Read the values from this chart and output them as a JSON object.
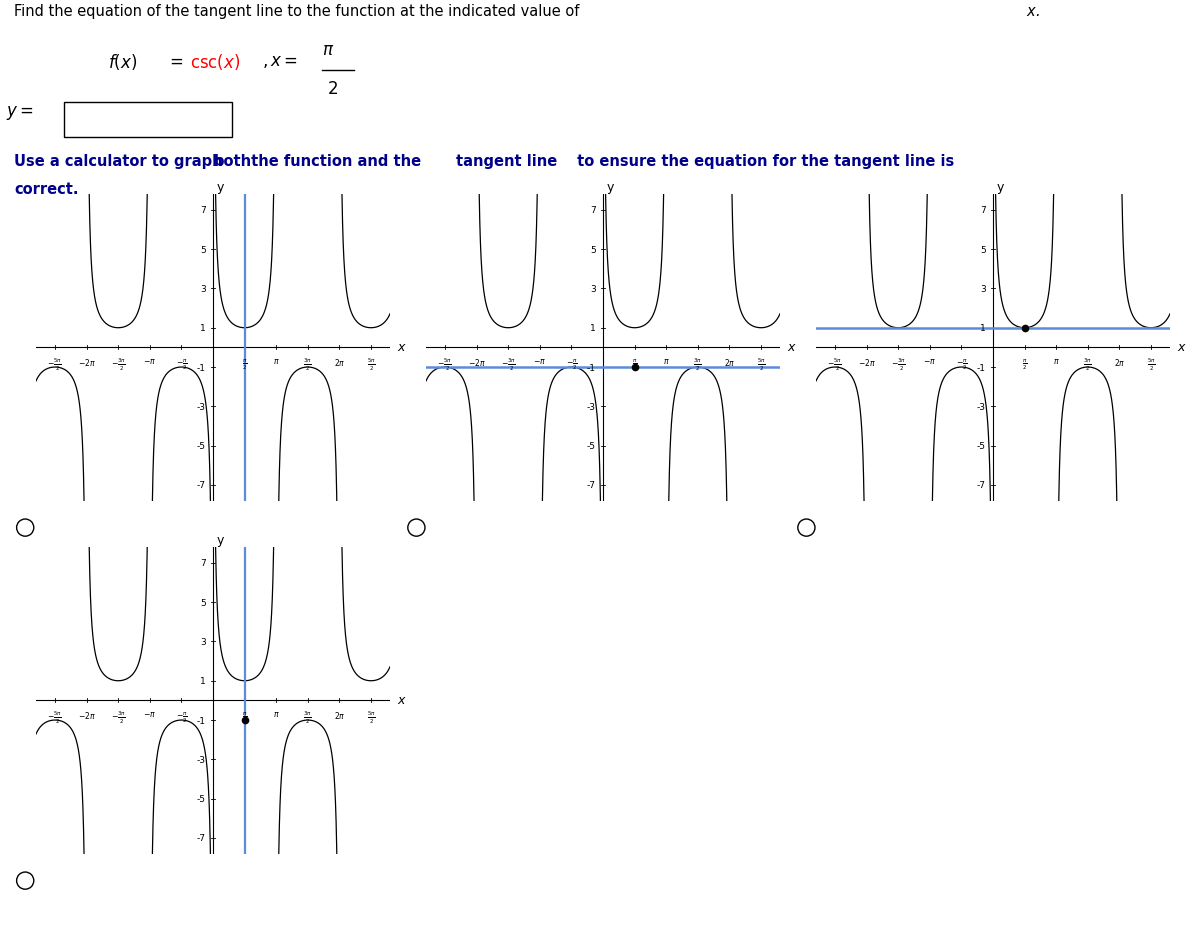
{
  "title_text": "Find the equation of the tangent line to the function at the indicated value of x.",
  "instruction_text": "Use a calculator to graph both the function and the tangent line to ensure the equation for the tangent line is correct.",
  "blue_color": "#5B8CDB",
  "curve_color": "#000000",
  "graphs": [
    {
      "blue_type": "vertical",
      "dot": null,
      "radio": true
    },
    {
      "blue_type": "horizontal_neg",
      "dot": [
        1.5708,
        -1
      ],
      "radio": true
    },
    {
      "blue_type": "horizontal_pos",
      "dot": [
        1.5708,
        1
      ],
      "radio": true
    },
    {
      "blue_type": "vertical_dot",
      "dot": [
        1.5708,
        -1
      ],
      "radio": true
    }
  ],
  "xlim": [
    -8.8,
    8.8
  ],
  "ylim": [
    -7.8,
    7.8
  ],
  "pi": 3.14159265358979
}
